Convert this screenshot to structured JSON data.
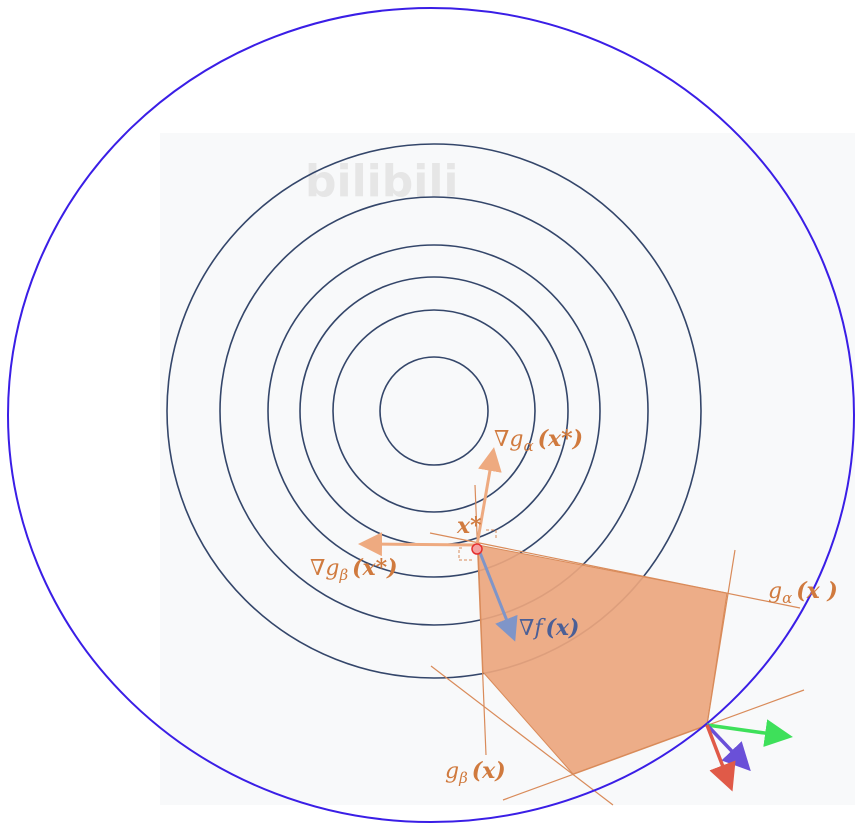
{
  "watermark": "bilibili",
  "labels": {
    "grad_g_alpha": "∇g",
    "grad_g_alpha_sub": "α",
    "grad_g_alpha_arg": "(x*)",
    "grad_g_beta": "∇g",
    "grad_g_beta_sub": "β",
    "grad_g_beta_arg": "(x*)",
    "x_star": "x*",
    "grad_f": "∇f",
    "grad_f_arg": "(x)",
    "g_alpha": "g",
    "g_alpha_sub": "α",
    "g_alpha_arg": "(x )",
    "g_beta": "g",
    "g_beta_sub": "β",
    "g_beta_arg": "(x)"
  },
  "colors": {
    "contour": "#34466a",
    "ellipse": "#3a1ee6",
    "feasible_region": "#eba67e",
    "constraint_line": "#d98b5a",
    "label_orange": "#d07a3e",
    "grad_f": "#7f95c8",
    "arrow_green": "#3ee05a",
    "arrow_purple": "#6a50d8",
    "arrow_red": "#e05a48",
    "point": "#e53030"
  }
}
